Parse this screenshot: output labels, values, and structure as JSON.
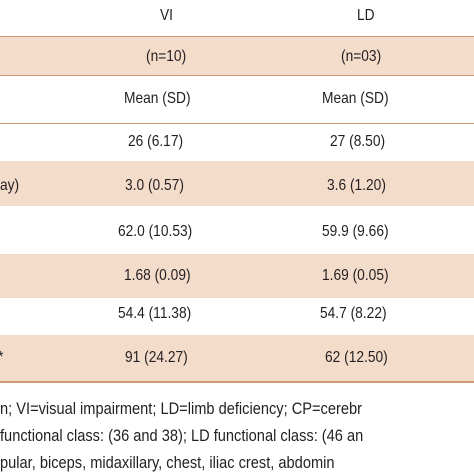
{
  "table": {
    "header": {
      "col_vi": "VI",
      "col_ld": "LD"
    },
    "n_row": {
      "vi": "(n=10)",
      "ld": "(n=03)"
    },
    "stat_row": {
      "vi": "Mean (SD)",
      "ld": "Mean (SD)"
    },
    "rows": [
      {
        "label": "",
        "vi": "26 (6.17)",
        "ld": "27 (8.50)"
      },
      {
        "label": "ay)",
        "vi": "3.0 (0.57)",
        "ld": "3.6 (1.20)"
      },
      {
        "label": "",
        "vi": "62.0 (10.53)",
        "ld": "59.9 (9.66)"
      },
      {
        "label": "",
        "vi": "1.68 (0.09)",
        "ld": "1.69 (0.05)"
      },
      {
        "label": "",
        "vi": "54.4 (11.38)",
        "ld": "54.7 (8.22)"
      },
      {
        "label": "*",
        "vi": "91 (24.27)",
        "ld": "62 (12.50)"
      }
    ]
  },
  "footnotes": [
    "n; VI=visual impairment; LD=limb deficiency; CP=cerebr",
    "functional class: (36 and 38); LD functional class: (46 an",
    "pular, biceps, midaxillary, chest, iliac crest, abdomin"
  ],
  "colors": {
    "band": "#f4dccb",
    "rule": "#cf9a73",
    "text": "#231f20"
  }
}
